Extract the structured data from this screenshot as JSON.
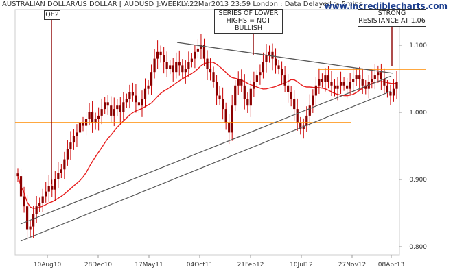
{
  "header": {
    "title": "AUSTRALIAN DOLLAR/US DOLLAR [ AUDUSD ]:WEEKLY:22Mar2013 23:59 London : Data Delayed > 5mins",
    "brand": "www.incrediblecharts.com"
  },
  "annotations": {
    "qe2": "QE2",
    "lower_highs": [
      "SERIES OF LOWER",
      "HIGHS = NOT",
      "BULLISH"
    ],
    "resistance": [
      "STRONG",
      "RESISTANCE AT 1.06"
    ]
  },
  "colors": {
    "candle_body": "#8b0000",
    "candle_wick": "#cc0000",
    "moving_average": "#e82020",
    "horizontal_line": "#ff8c00",
    "trend_line": "#555555",
    "axis": "#cccccc"
  },
  "chart_data": {
    "type": "candlestick",
    "instrument": "AUDUSD",
    "period": "weekly",
    "x_tick_labels": [
      "10Aug10",
      "28Dec10",
      "17May11",
      "04Oct11",
      "21Feb12",
      "10Jul12",
      "27Nov12",
      "08Apr13"
    ],
    "y_tick_labels": [
      "1.100",
      "1.000",
      "0.900",
      "0.800"
    ],
    "ylim": [
      0.78,
      1.14
    ],
    "close": [
      0.905,
      0.875,
      0.86,
      0.825,
      0.83,
      0.848,
      0.86,
      0.865,
      0.875,
      0.882,
      0.89,
      0.885,
      0.9,
      0.91,
      0.915,
      0.93,
      0.945,
      0.955,
      0.965,
      0.97,
      0.985,
      0.98,
      0.99,
      1.0,
      0.985,
      0.99,
      0.995,
      1.005,
      1.015,
      1.01,
      0.995,
      1.005,
      1.01,
      1.0,
      1.015,
      1.02,
      1.03,
      1.025,
      1.015,
      1.01,
      1.02,
      1.035,
      1.04,
      1.06,
      1.08,
      1.09,
      1.085,
      1.075,
      1.065,
      1.07,
      1.06,
      1.075,
      1.07,
      1.06,
      1.065,
      1.075,
      1.08,
      1.09,
      1.095,
      1.1,
      1.08,
      1.065,
      1.06,
      1.045,
      1.025,
      1.02,
      1.005,
      0.985,
      0.97,
      1.01,
      1.04,
      1.05,
      1.04,
      1.02,
      1.01,
      1.035,
      1.045,
      1.055,
      1.06,
      1.075,
      1.085,
      1.09,
      1.08,
      1.07,
      1.065,
      1.055,
      1.04,
      1.03,
      1.02,
      1.005,
      0.985,
      0.975,
      0.98,
      0.995,
      1.01,
      1.025,
      1.04,
      1.05,
      1.045,
      1.055,
      1.045,
      1.04,
      1.035,
      1.04,
      1.045,
      1.04,
      1.035,
      1.045,
      1.05,
      1.055,
      1.05,
      1.04,
      1.035,
      1.045,
      1.05,
      1.055,
      1.06,
      1.05,
      1.04,
      1.03,
      1.025,
      1.035,
      1.045
    ]
  }
}
